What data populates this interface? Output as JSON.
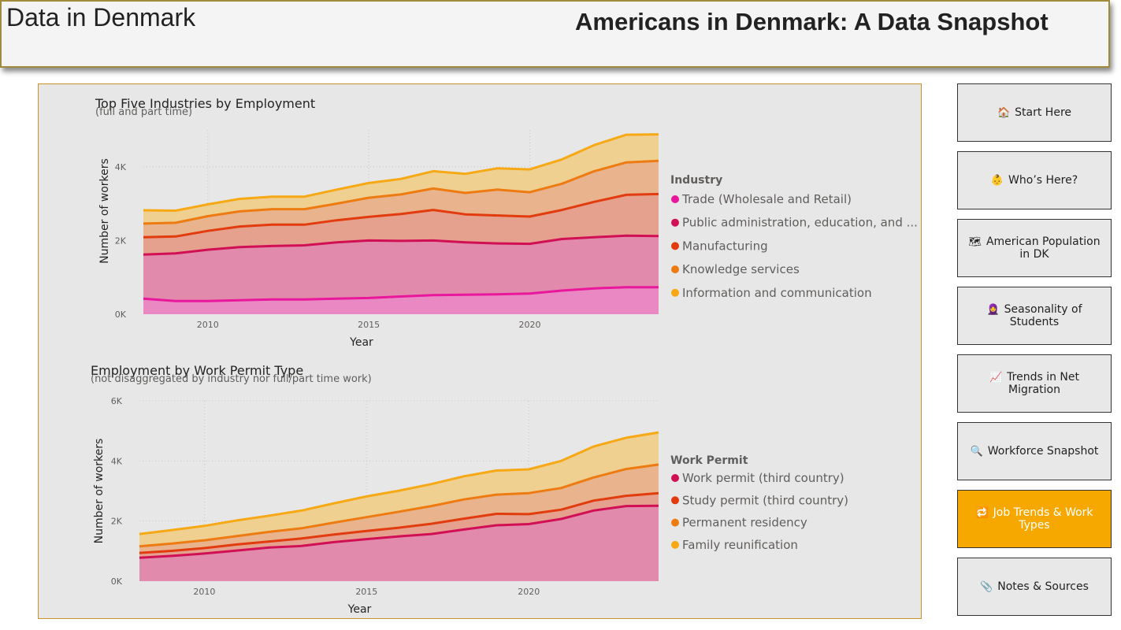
{
  "header": {
    "left_title": "Data in Denmark",
    "main_title": "Americans in Denmark: A Data Snapshot"
  },
  "nav": [
    {
      "label": "Start Here",
      "icon": "🏠",
      "icon_name": "house-icon",
      "active": false
    },
    {
      "label": "Who’s Here?",
      "icon": "👶",
      "icon_name": "person-icon",
      "active": false
    },
    {
      "label": "American Population in DK",
      "icon": "🗺",
      "icon_name": "map-icon",
      "active": false
    },
    {
      "label": "Seasonality of Students",
      "icon": "🧕",
      "icon_name": "student-icon",
      "active": false
    },
    {
      "label": "Trends in Net Migration",
      "icon": "📈",
      "icon_name": "chart-increasing-icon",
      "active": false
    },
    {
      "label": "Workforce Snapshot",
      "icon": "🔍",
      "icon_name": "magnifier-icon",
      "active": false
    },
    {
      "label": "Job Trends & Work Types",
      "icon": "🔁",
      "icon_name": "repeat-icon",
      "active": true
    },
    {
      "label": "Notes & Sources",
      "icon": "📎",
      "icon_name": "paperclip-icon",
      "active": false
    }
  ],
  "colors": {
    "accent": "#f7a800",
    "panel_border": "#c8942a"
  },
  "chart_data": [
    {
      "type": "area",
      "stacked": true,
      "title": "Top Five Industries by Employment",
      "subtitle": "(full and part time)",
      "xlabel": "Year",
      "ylabel": "Number of workers",
      "xlim": [
        2008,
        2024
      ],
      "ylim": [
        0,
        5000
      ],
      "yticks": [
        0,
        2000,
        4000
      ],
      "ytick_labels": [
        "0K",
        "2K",
        "4K"
      ],
      "xticks": [
        2010,
        2015,
        2020
      ],
      "grid": true,
      "legend_title": "Industry",
      "legend_position": "right",
      "x": [
        2008,
        2009,
        2010,
        2011,
        2012,
        2013,
        2014,
        2015,
        2016,
        2017,
        2018,
        2019,
        2020,
        2021,
        2022,
        2023,
        2024
      ],
      "series": [
        {
          "name": "Trade (Wholesale and Retail)",
          "color": "#e8179b",
          "fill": "#ea88c3",
          "values": [
            420,
            360,
            360,
            380,
            400,
            400,
            420,
            440,
            480,
            520,
            530,
            540,
            560,
            640,
            700,
            730,
            730
          ]
        },
        {
          "name": "Public administration, education, and ...",
          "color": "#d10f55",
          "fill": "#e18aab",
          "values": [
            1200,
            1290,
            1390,
            1440,
            1450,
            1470,
            1530,
            1560,
            1510,
            1480,
            1420,
            1380,
            1350,
            1400,
            1390,
            1400,
            1390
          ]
        },
        {
          "name": "Manufacturing",
          "color": "#e13b0e",
          "fill": "#e6a08e",
          "values": [
            470,
            460,
            510,
            560,
            580,
            560,
            600,
            640,
            730,
            830,
            760,
            760,
            740,
            790,
            960,
            1110,
            1140
          ]
        },
        {
          "name": "Knowledge services",
          "color": "#ee7b12",
          "fill": "#e8b38d",
          "values": [
            370,
            370,
            400,
            410,
            420,
            420,
            450,
            520,
            530,
            580,
            580,
            700,
            660,
            710,
            830,
            880,
            900
          ]
        },
        {
          "name": "Information and communication",
          "color": "#f7a815",
          "fill": "#efd091",
          "values": [
            360,
            330,
            320,
            340,
            340,
            340,
            380,
            400,
            420,
            470,
            520,
            580,
            620,
            660,
            710,
            750,
            720
          ]
        }
      ]
    },
    {
      "type": "area",
      "stacked": true,
      "title": "Employment by Work Permit Type",
      "subtitle": "(not disaggregated by industry nor full/part time work)",
      "xlabel": "Year",
      "ylabel": "Number of workers",
      "xlim": [
        2008,
        2024
      ],
      "ylim": [
        0,
        6000
      ],
      "yticks": [
        0,
        2000,
        4000,
        6000
      ],
      "ytick_labels": [
        "0K",
        "2K",
        "4K",
        "6K"
      ],
      "xticks": [
        2010,
        2015,
        2020
      ],
      "grid": true,
      "legend_title": "Work Permit",
      "legend_position": "right",
      "x": [
        2008,
        2009,
        2010,
        2011,
        2012,
        2013,
        2014,
        2015,
        2016,
        2017,
        2018,
        2019,
        2020,
        2021,
        2022,
        2023,
        2024
      ],
      "series": [
        {
          "name": "Work permit (third country)",
          "color": "#d10f55",
          "fill": "#e18aab",
          "values": [
            780,
            840,
            920,
            1020,
            1120,
            1170,
            1300,
            1400,
            1490,
            1570,
            1720,
            1860,
            1900,
            2070,
            2350,
            2500,
            2510
          ]
        },
        {
          "name": "Study permit (third country)",
          "color": "#e13b0e",
          "fill": "#e6a08e",
          "values": [
            160,
            170,
            180,
            200,
            200,
            250,
            250,
            270,
            290,
            340,
            360,
            380,
            330,
            310,
            330,
            340,
            420
          ]
        },
        {
          "name": "Permanent residency",
          "color": "#ee7b12",
          "fill": "#e8b38d",
          "values": [
            220,
            240,
            260,
            280,
            320,
            340,
            400,
            460,
            530,
            590,
            640,
            640,
            700,
            720,
            770,
            890,
            950
          ]
        },
        {
          "name": "Family reunification",
          "color": "#f7a815",
          "fill": "#efd091",
          "values": [
            410,
            450,
            480,
            520,
            540,
            590,
            640,
            690,
            700,
            730,
            770,
            800,
            790,
            900,
            1030,
            1040,
            1070
          ]
        }
      ]
    }
  ]
}
